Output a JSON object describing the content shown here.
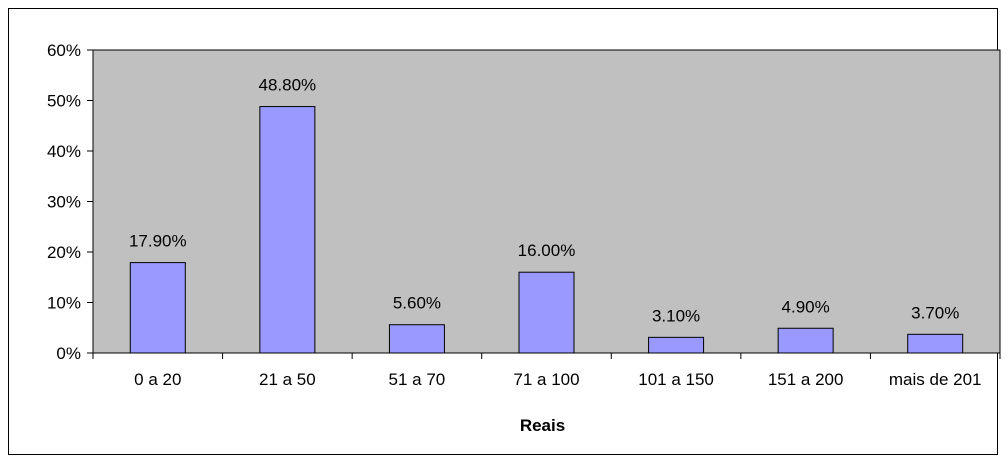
{
  "chart_data": {
    "type": "bar",
    "categories": [
      "0 a 20",
      "21 a 50",
      "51 a 70",
      "71 a 100",
      "101 a 150",
      "151 a 200",
      "mais de 201"
    ],
    "values": [
      17.9,
      48.8,
      5.6,
      16.0,
      3.1,
      4.9,
      3.7
    ],
    "data_labels": [
      "17.90%",
      "48.80%",
      "5.60%",
      "16.00%",
      "3.10%",
      "4.90%",
      "3.70%"
    ],
    "y_ticks": [
      "0%",
      "10%",
      "20%",
      "30%",
      "40%",
      "50%",
      "60%"
    ],
    "ylim": [
      0,
      60
    ],
    "xlabel": "Reais",
    "ylabel": "",
    "title": "",
    "legend": "none",
    "colors": {
      "bar_fill": "#9999ff",
      "plot_background": "#c0c0c0",
      "outline": "#000000"
    }
  }
}
